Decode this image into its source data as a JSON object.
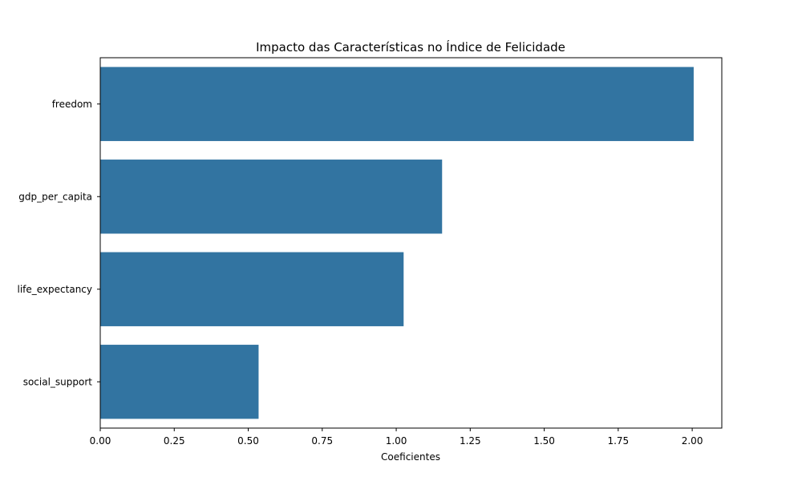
{
  "chart_data": {
    "type": "bar",
    "orientation": "horizontal",
    "title": "Impacto das Características no Índice de Felicidade",
    "xlabel": "Coeficientes",
    "ylabel": "",
    "categories": [
      "freedom",
      "gdp_per_capita",
      "life_expectancy",
      "social_support"
    ],
    "values": [
      2.005,
      1.155,
      1.025,
      0.535
    ],
    "xlim": [
      0,
      2.1
    ],
    "xticks": [
      "0.00",
      "0.25",
      "0.50",
      "0.75",
      "1.00",
      "1.25",
      "1.50",
      "1.75",
      "2.00"
    ],
    "grid": false,
    "bar_color": "#3274a1"
  }
}
